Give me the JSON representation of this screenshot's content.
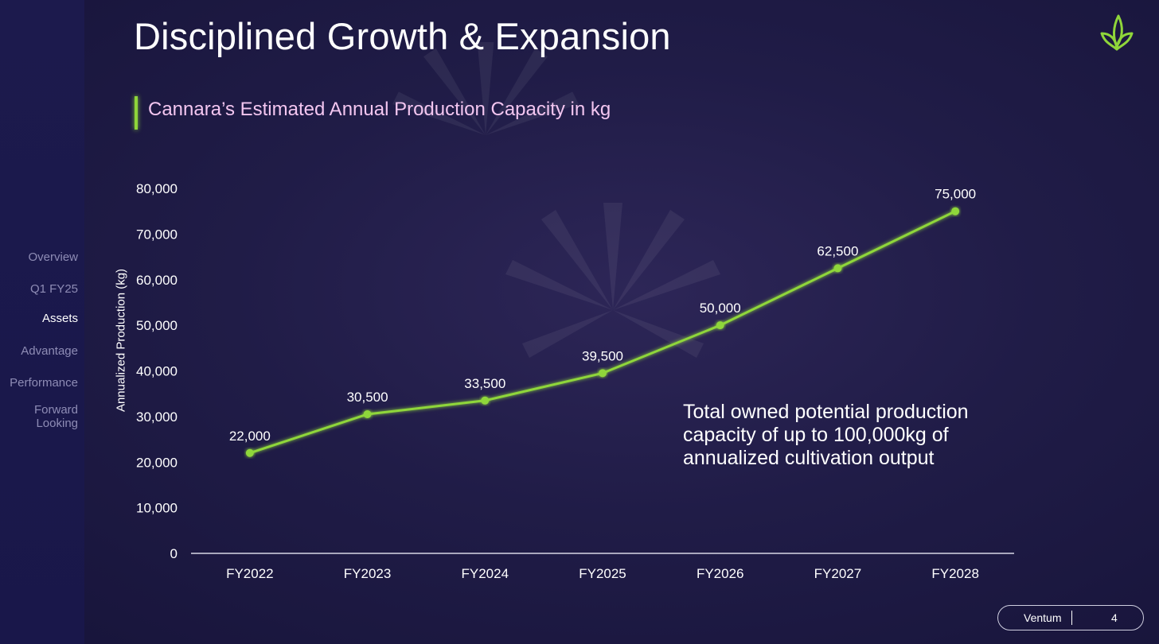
{
  "slide": {
    "title": "Disciplined Growth & Expansion",
    "subtitle": "Cannara’s Estimated Annual Production Capacity in kg",
    "callout": "Total owned potential production capacity of up to 100,000kg of annualized cultivation output",
    "logo_icon": "leaf-sprout-icon",
    "accent_color": "#8fd63a"
  },
  "sidebar": {
    "items": [
      {
        "label": "Overview",
        "active": false
      },
      {
        "label": "Q1 FY25",
        "active": false
      },
      {
        "label": "Assets",
        "active": true
      },
      {
        "label": "Advantage",
        "active": false
      },
      {
        "label": "Performance",
        "active": false
      },
      {
        "label": "Forward Looking",
        "active": false
      }
    ]
  },
  "footer": {
    "brand": "Ventum",
    "page": "4"
  },
  "chart_data": {
    "type": "line",
    "categories": [
      "FY2022",
      "FY2023",
      "FY2024",
      "FY2025",
      "FY2026",
      "FY2027",
      "FY2028"
    ],
    "values": [
      22000,
      30500,
      33500,
      39500,
      50000,
      62500,
      75000
    ],
    "data_labels": [
      "22,000",
      "30,500",
      "33,500",
      "39,500",
      "50,000",
      "62,500",
      "75,000"
    ],
    "title": "Cannara’s Estimated Annual Production Capacity in kg",
    "xlabel": "",
    "ylabel": "Annualized Production (kg)",
    "ylim": [
      0,
      80000
    ],
    "yticks": [
      0,
      10000,
      20000,
      30000,
      40000,
      50000,
      60000,
      70000,
      80000
    ],
    "ytick_labels": [
      "0",
      "10,000",
      "20,000",
      "30,000",
      "40,000",
      "50,000",
      "60,000",
      "70,000",
      "80,000"
    ],
    "grid": false,
    "line_color": "#8fd63a"
  }
}
